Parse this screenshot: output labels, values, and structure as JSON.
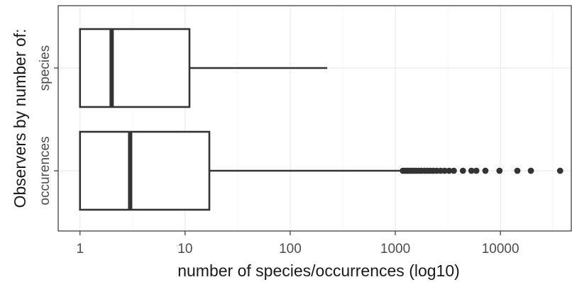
{
  "chart_data": {
    "type": "boxplot",
    "orientation": "horizontal",
    "xlabel": "number of species/occurrences (log10)",
    "ylabel": "Observers by number of:",
    "x_scale": "log10",
    "xlim": [
      0.62,
      48000
    ],
    "grid": true,
    "x_ticks": [
      1,
      10,
      100,
      1000,
      10000
    ],
    "x_tick_labels": [
      "1",
      "10",
      "100",
      "1000",
      "10000"
    ],
    "categories": [
      "species",
      "occurences"
    ],
    "boxes": [
      {
        "label": "species",
        "min": 1,
        "q1": 1,
        "median": 2,
        "q3": 11,
        "max": 225,
        "outliers": []
      },
      {
        "label": "occurences",
        "min": 1,
        "q1": 1,
        "median": 3,
        "q3": 17,
        "max": 1150,
        "outliers": [
          1180,
          1230,
          1290,
          1350,
          1420,
          1500,
          1580,
          1680,
          1780,
          1900,
          2020,
          2150,
          2300,
          2480,
          2700,
          2950,
          3250,
          3600,
          4400,
          5300,
          5900,
          7200,
          9800,
          14500,
          19500,
          37000
        ]
      }
    ],
    "colors": {
      "box_stroke": "#333333",
      "box_fill": "#ffffff",
      "grid_major": "#ebebeb",
      "grid_minor": "#f5f5f5",
      "panel_border": "#333333"
    }
  }
}
